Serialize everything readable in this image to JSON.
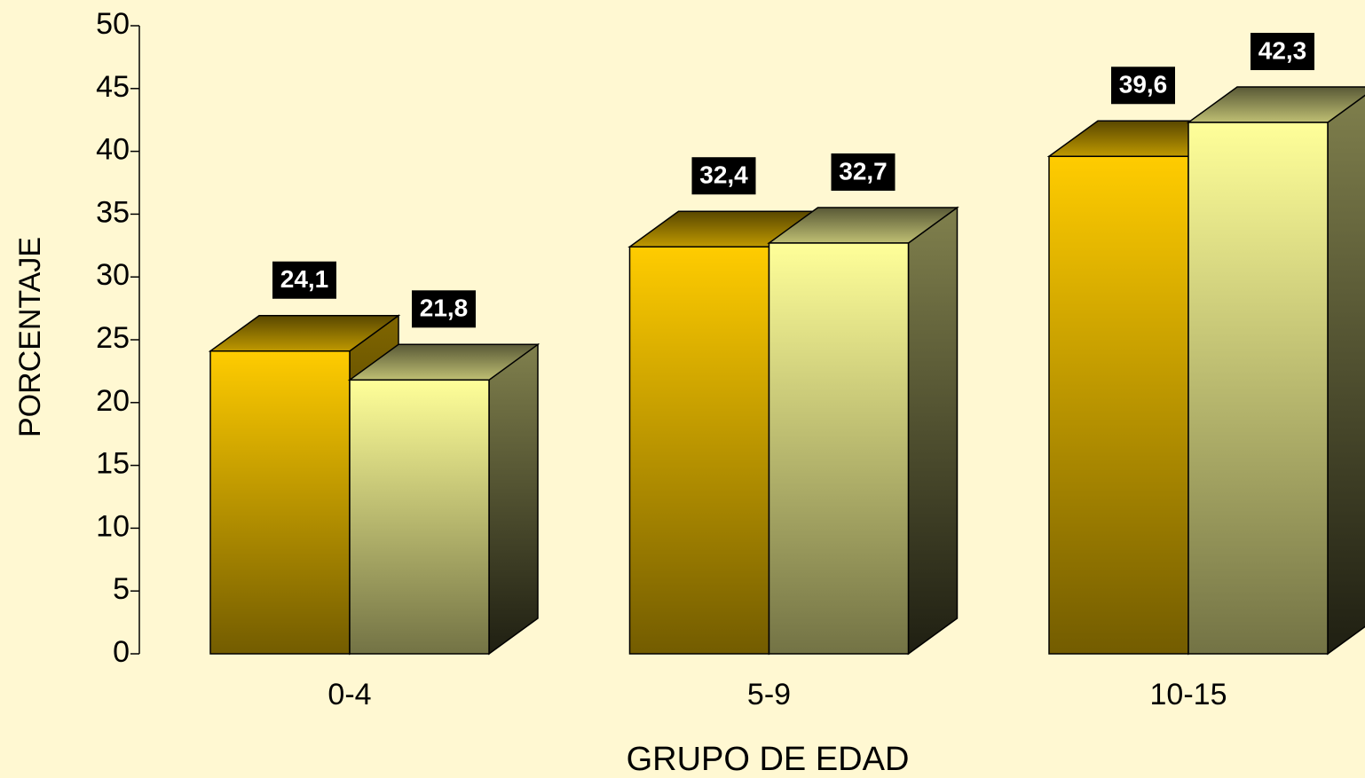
{
  "chart_data": {
    "type": "bar3d",
    "x_label": "GRUPO DE EDAD",
    "y_label": "PORCENTAJE",
    "categories": [
      "0-4",
      "5-9",
      "10-15"
    ],
    "series": [
      {
        "color": "#ffcc00",
        "values": [
          24.1,
          32.4,
          39.6
        ],
        "value_labels": [
          "24,1",
          "32,4",
          "39,6"
        ]
      },
      {
        "color": "#ffff99",
        "values": [
          21.8,
          32.7,
          42.3
        ],
        "value_labels": [
          "21,8",
          "32,7",
          "42,3"
        ]
      }
    ],
    "ylim": [
      0,
      50
    ],
    "yticks": [
      0,
      5,
      10,
      15,
      20,
      25,
      30,
      35,
      40,
      45,
      50
    ]
  }
}
